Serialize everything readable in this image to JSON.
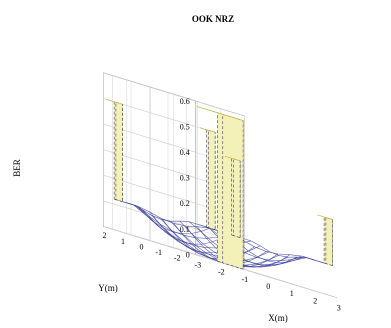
{
  "chart_data": {
    "type": "surface",
    "title": "OOK NRZ",
    "xlabel": "X(m)",
    "ylabel": "Y(m)",
    "zlabel": "BER",
    "xlim": [
      -3,
      3
    ],
    "ylim": [
      -2.5,
      2.5
    ],
    "zlim": [
      0,
      0.6
    ],
    "x_ticks": [
      "-3",
      "-2",
      "-1",
      "0",
      "1",
      "2",
      "3"
    ],
    "y_ticks": [
      "2",
      "1",
      "0",
      "-1",
      "-2"
    ],
    "z_ticks": [
      "0",
      "0.1",
      "0.2",
      "0.3",
      "0.4",
      "0.5",
      "0.6"
    ],
    "grid": true,
    "surface": {
      "description_values": "Bowl-shaped BER mesh: near-zero at the centre rising toward the room edges, with sharp spikes to ~0.5 at the centre and the four corners.",
      "x": [
        -2.5,
        -2,
        -1.5,
        -1,
        -0.5,
        0,
        0.5,
        1,
        1.5,
        2,
        2.5
      ],
      "y": [
        -2.5,
        -2,
        -1.5,
        -1,
        -0.5,
        0,
        0.5,
        1,
        1.5,
        2,
        2.5
      ],
      "spikes": [
        {
          "x": 0,
          "y": 0,
          "z": 0.58
        },
        {
          "x": -2.5,
          "y": 2.5,
          "z": 0.5
        },
        {
          "x": 2.5,
          "y": 2.5,
          "z": 0.42
        },
        {
          "x": -2.5,
          "y": -2.5,
          "z": 0.5
        },
        {
          "x": 2.5,
          "y": -2.5,
          "z": 0.3
        }
      ],
      "base_edge_value": 0.12,
      "centre_value": 0.0
    },
    "colors": {
      "mesh": "#3a3f9a",
      "spike_face": "#f3f0b8",
      "spike_edge": "#1a1a50",
      "grid": "#d0d0d0",
      "box": "#8a8a8a"
    }
  }
}
